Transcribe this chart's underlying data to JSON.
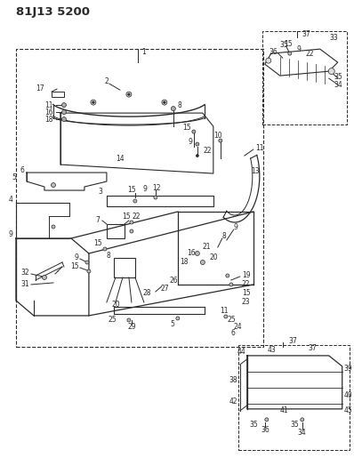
{
  "title": "81J13 5200",
  "bg_color": "#ffffff",
  "line_color": "#2a2a2a",
  "fig_width": 3.98,
  "fig_height": 5.33,
  "dpi": 100
}
